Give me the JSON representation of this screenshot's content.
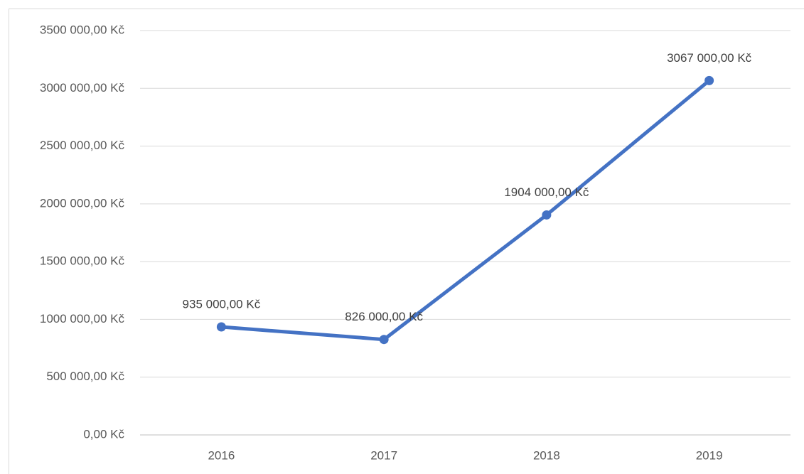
{
  "chart_data": {
    "type": "line",
    "categories": [
      "2016",
      "2017",
      "2018",
      "2019"
    ],
    "series": [
      {
        "name": null,
        "color": "#4472c4",
        "values": [
          935000,
          826000,
          1904000,
          3067000
        ],
        "value_labels": [
          "935 000,00 Kč",
          "826 000,00 Kč",
          "1904 000,00 Kč",
          "3067 000,00 Kč"
        ]
      }
    ],
    "ylim": [
      0,
      3500000
    ],
    "yticks": [
      {
        "value": 0,
        "label": "0,00 Kč"
      },
      {
        "value": 500000,
        "label": "500 000,00 Kč"
      },
      {
        "value": 1000000,
        "label": "1000 000,00 Kč"
      },
      {
        "value": 1500000,
        "label": "1500 000,00 Kč"
      },
      {
        "value": 2000000,
        "label": "2000 000,00 Kč"
      },
      {
        "value": 2500000,
        "label": "2500 000,00 Kč"
      },
      {
        "value": 3000000,
        "label": "3000 000,00 Kč"
      },
      {
        "value": 3500000,
        "label": "3500 000,00 Kč"
      }
    ],
    "grid": true
  }
}
